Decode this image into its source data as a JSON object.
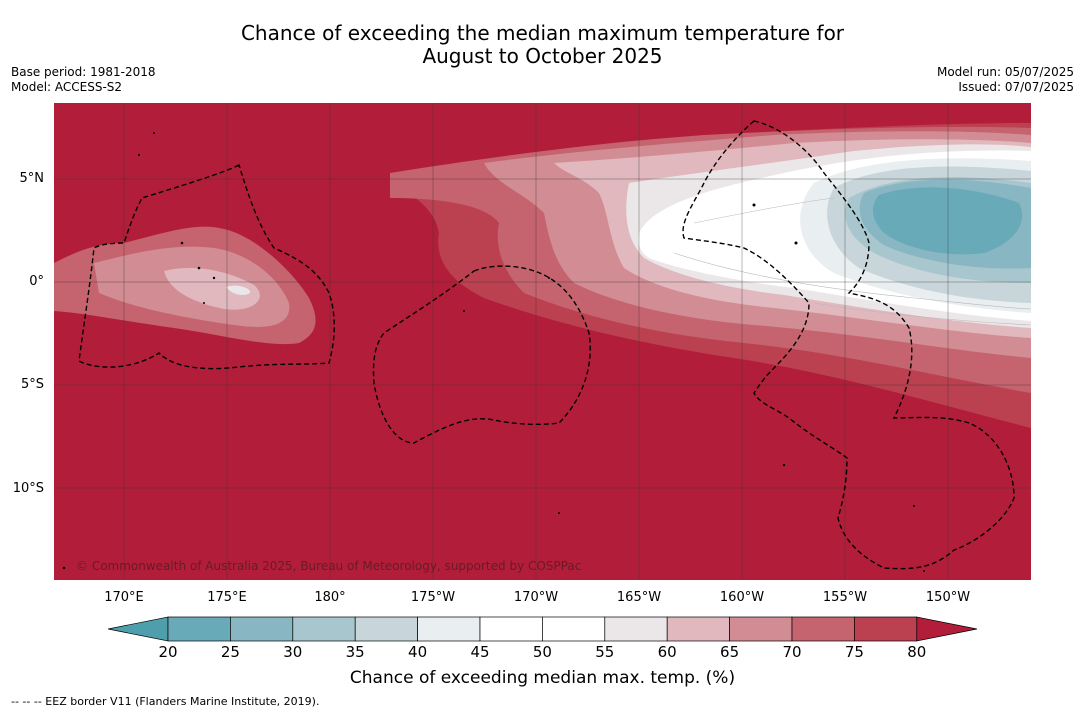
{
  "title": {
    "line1": "Chance of exceeding the median maximum temperature for",
    "line2": "August to October 2025"
  },
  "meta_left": {
    "base_period": "Base period: 1981-2018",
    "model": "Model: ACCESS-S2"
  },
  "meta_right": {
    "model_run": "Model run: 05/07/2025",
    "issued": "Issued: 07/07/2025"
  },
  "map": {
    "lat_labels": [
      "5°N",
      "0°",
      "5°S",
      "10°S"
    ],
    "lon_labels": [
      "170°E",
      "175°E",
      "180°",
      "175°W",
      "170°W",
      "165°W",
      "160°W",
      "155°W",
      "150°W"
    ],
    "copyright": "© Commonwealth of Australia 2025, Bureau of Meteorology, supported by COSPPac",
    "background_class_color": "#b21e3a"
  },
  "colorbar": {
    "ticks": [
      "20",
      "25",
      "30",
      "35",
      "40",
      "45",
      "50",
      "55",
      "60",
      "65",
      "70",
      "75",
      "80"
    ],
    "colors": [
      "#4f9eab",
      "#69aab8",
      "#88b6c2",
      "#a8c6cd",
      "#c8d6db",
      "#e9eef0",
      "#ffffff",
      "#ffffff",
      "#ebe7e8",
      "#e0b8be",
      "#d28c94",
      "#c5636f",
      "#bb4150",
      "#b21e3a"
    ],
    "label": "Chance of exceeding median max. temp. (%)"
  },
  "footnote": "--  --  -- EEZ border V11 (Flanders Marine Institute, 2019)."
}
